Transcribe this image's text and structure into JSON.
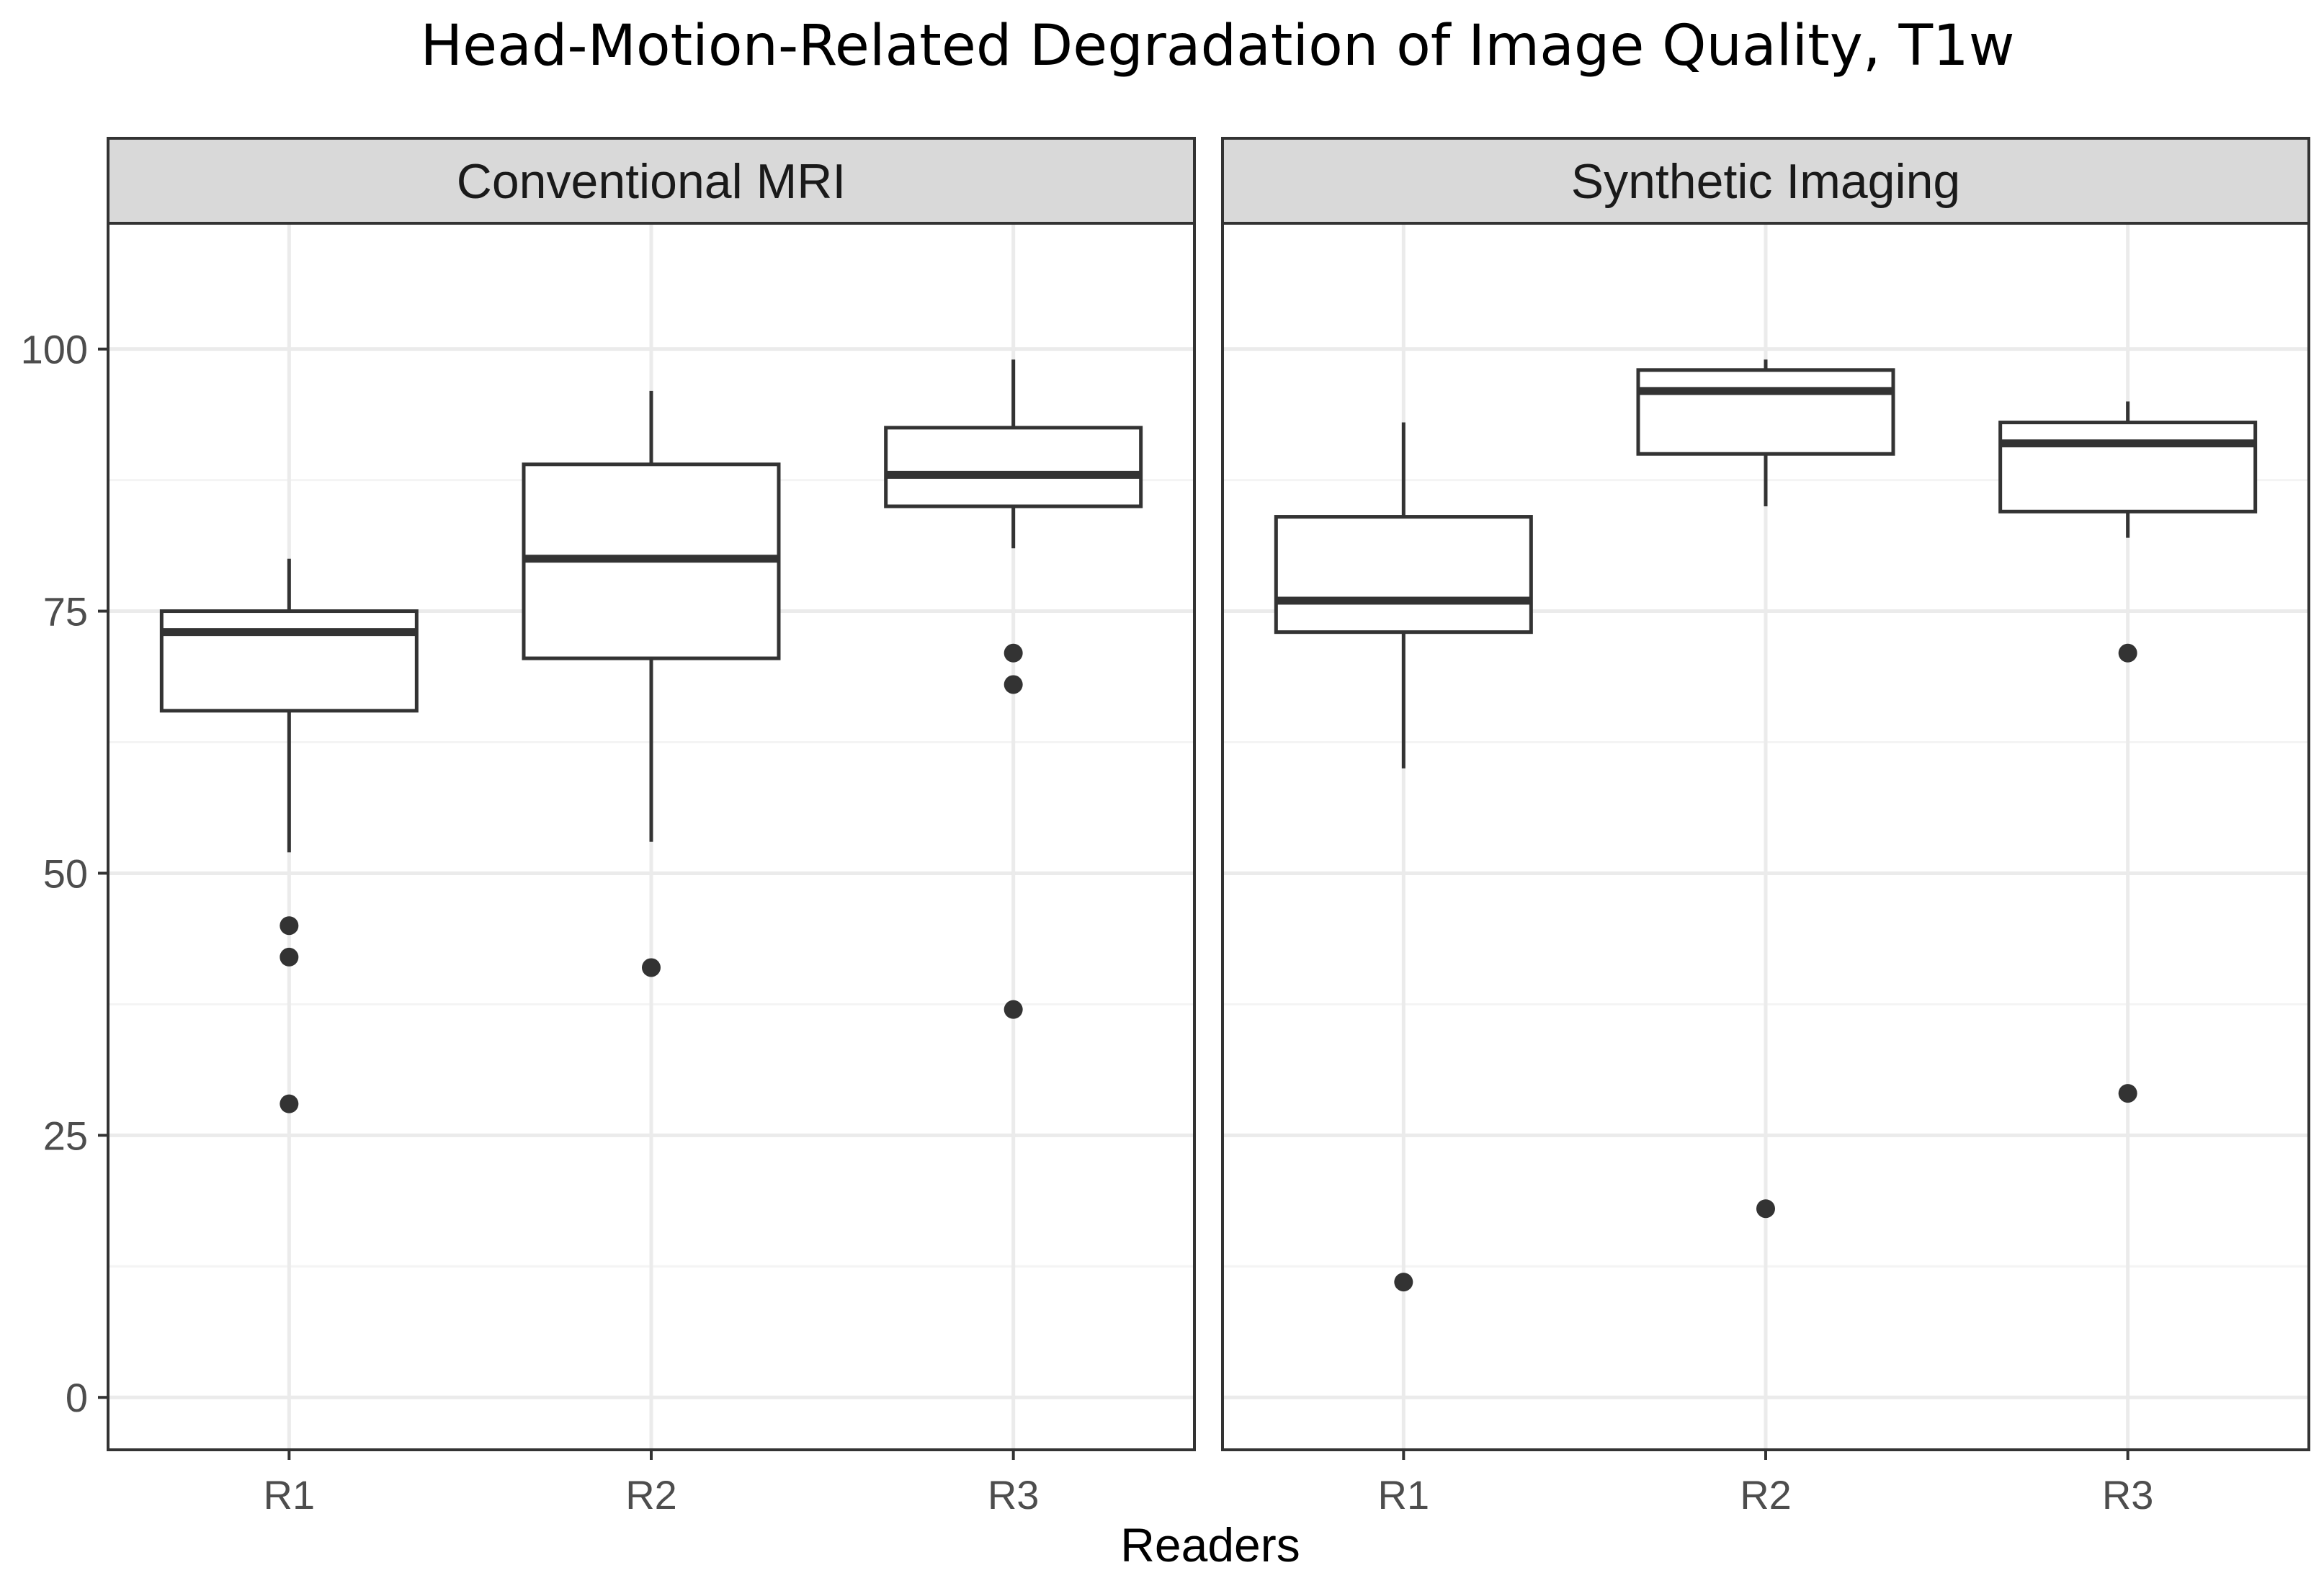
{
  "chart_data": {
    "type": "boxplot",
    "title": "Head-Motion-Related Degradation of Image Quality, T1w",
    "xlabel": "Readers",
    "ylabel": "",
    "ylim": [
      -5,
      112
    ],
    "yticks": [
      0,
      25,
      50,
      75,
      100
    ],
    "grid": true,
    "categories": [
      "R1",
      "R2",
      "R3"
    ],
    "panels": [
      {
        "label": "Conventional MRI",
        "boxes": [
          {
            "reader": "R1",
            "whisker_low": 52,
            "q1": 65.5,
            "median": 73,
            "q3": 75,
            "whisker_high": 80,
            "outliers": [
              45,
              42,
              28
            ]
          },
          {
            "reader": "R2",
            "whisker_low": 53,
            "q1": 70.5,
            "median": 80,
            "q3": 89,
            "whisker_high": 96,
            "outliers": [
              41
            ]
          },
          {
            "reader": "R3",
            "whisker_low": 81,
            "q1": 85,
            "median": 88,
            "q3": 92.5,
            "whisker_high": 99,
            "outliers": [
              71,
              68,
              37
            ]
          }
        ]
      },
      {
        "label": "Synthetic Imaging",
        "boxes": [
          {
            "reader": "R1",
            "whisker_low": 60,
            "q1": 73,
            "median": 76,
            "q3": 84,
            "whisker_high": 93,
            "outliers": [
              11
            ]
          },
          {
            "reader": "R2",
            "whisker_low": 85,
            "q1": 90,
            "median": 96,
            "q3": 98,
            "whisker_high": 99,
            "outliers": [
              18
            ]
          },
          {
            "reader": "R3",
            "whisker_low": 82,
            "q1": 84.5,
            "median": 91,
            "q3": 93,
            "whisker_high": 95,
            "outliers": [
              71,
              29
            ]
          }
        ]
      }
    ]
  },
  "colors": {
    "strip": "#d9d9d9",
    "grid_major": "#ebebeb",
    "grid_minor": "#f4f4f4",
    "ink": "#333333",
    "axis_text": "#4d4d4d"
  }
}
